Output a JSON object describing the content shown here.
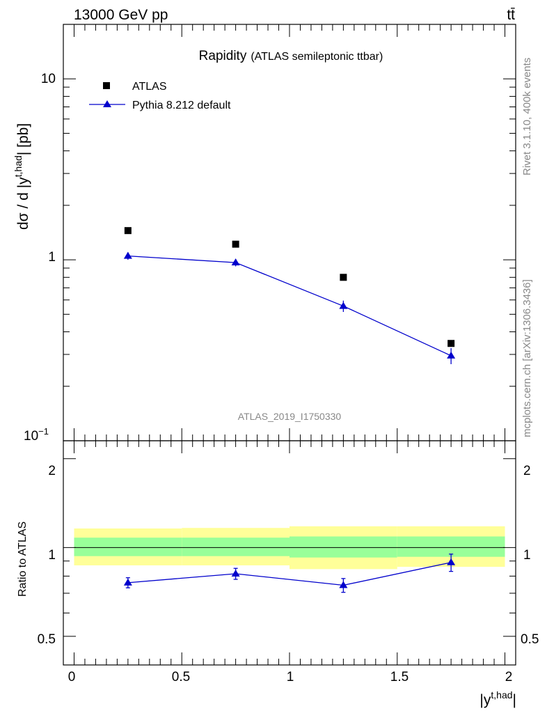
{
  "header": {
    "left": "13000 GeV pp",
    "right": "tt̄"
  },
  "side_text": {
    "rivet": "Rivet 3.1.10,  400k events",
    "mcplots": "mcplots.cern.ch [arXiv:1306.3436]"
  },
  "chart_data": {
    "type": "scatter",
    "title": "Rapidity",
    "subtitle": "(ATLAS semileptonic ttbar)",
    "analysis_id": "ATLAS_2019_I1750330",
    "xlabel": "|y",
    "xlabel_sup": "t,had",
    "xlabel_end": "|",
    "ylabel": "dσ / d |y",
    "ylabel_sup": "t,had",
    "ylabel_end": "| [pb]",
    "xlim": [
      -0.05,
      2.05
    ],
    "main_panel": {
      "yscale": "log",
      "ylim": [
        0.1,
        20
      ],
      "y_tick_labels": [
        "10",
        "1",
        "10"
      ],
      "y_tick_minus1": "−1",
      "series": [
        {
          "name": "ATLAS",
          "color": "#000000",
          "marker": "square",
          "x": [
            0.25,
            0.75,
            1.25,
            1.75
          ],
          "y": [
            1.45,
            1.22,
            0.8,
            0.345
          ]
        },
        {
          "name": "Pythia 8.212 default",
          "color": "#0000cc",
          "marker": "triangle",
          "x": [
            0.25,
            0.75,
            1.25,
            1.75
          ],
          "y": [
            1.05,
            0.965,
            0.555,
            0.295
          ],
          "err": [
            0.05,
            0.045,
            0.04,
            0.03
          ]
        }
      ]
    },
    "ratio_panel": {
      "ylabel": "Ratio to ATLAS",
      "ylim": [
        0.4,
        2.3
      ],
      "yscale": "log",
      "y_tick_labels": [
        "2",
        "1",
        "0.5"
      ],
      "x_tick_labels": [
        "0",
        "0.5",
        "1",
        "1.5",
        "2"
      ],
      "bands": [
        {
          "x": [
            0.0,
            0.5
          ],
          "yellow": [
            0.87,
            1.16
          ],
          "green": [
            0.935,
            1.08
          ]
        },
        {
          "x": [
            0.5,
            1.0
          ],
          "yellow": [
            0.87,
            1.165
          ],
          "green": [
            0.935,
            1.08
          ]
        },
        {
          "x": [
            1.0,
            1.5
          ],
          "yellow": [
            0.845,
            1.18
          ],
          "green": [
            0.925,
            1.09
          ]
        },
        {
          "x": [
            1.5,
            2.0
          ],
          "yellow": [
            0.86,
            1.18
          ],
          "green": [
            0.93,
            1.09
          ]
        }
      ],
      "series": [
        {
          "name": "Pythia 8.212 default",
          "color": "#0000cc",
          "x": [
            0.25,
            0.75,
            1.25,
            1.75
          ],
          "y": [
            0.76,
            0.815,
            0.745,
            0.89
          ],
          "err": [
            0.03,
            0.035,
            0.04,
            0.06
          ]
        }
      ]
    }
  }
}
